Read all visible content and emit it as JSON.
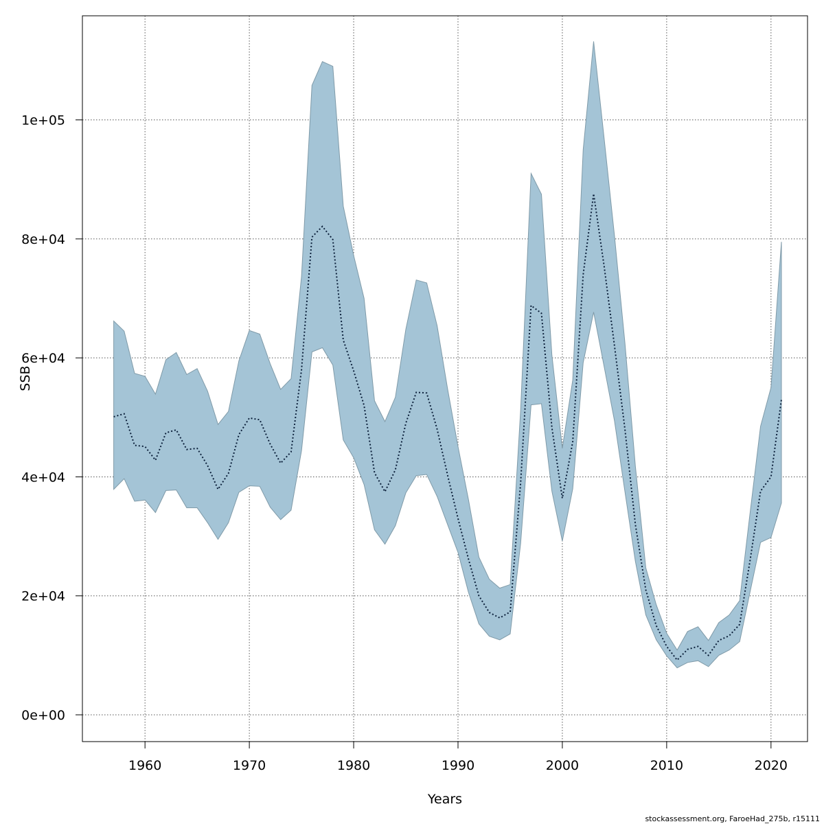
{
  "chart_data": {
    "type": "area",
    "xlabel": "Years",
    "ylabel": "SSB",
    "xlim": [
      1954,
      2023.5
    ],
    "ylim": [
      -4500,
      117500
    ],
    "x_ticks": [
      1960,
      1970,
      1980,
      1990,
      2000,
      2010,
      2020
    ],
    "x_tick_labels": [
      "1960",
      "1970",
      "1980",
      "1990",
      "2000",
      "2010",
      "2020"
    ],
    "y_ticks": [
      0,
      20000,
      40000,
      60000,
      80000,
      100000
    ],
    "y_tick_labels": [
      "0e+00",
      "2e+04",
      "4e+04",
      "6e+04",
      "8e+04",
      "1e+05"
    ],
    "grid": true,
    "band_color": "#a4c4d6",
    "line_color": "#0b1f3a",
    "x": [
      1957,
      1958,
      1959,
      1960,
      1961,
      1962,
      1963,
      1964,
      1965,
      1966,
      1967,
      1968,
      1969,
      1970,
      1971,
      1972,
      1973,
      1974,
      1975,
      1976,
      1977,
      1978,
      1979,
      1980,
      1981,
      1982,
      1983,
      1984,
      1985,
      1986,
      1987,
      1988,
      1989,
      1990,
      1991,
      1992,
      1993,
      1994,
      1995,
      1996,
      1997,
      1998,
      1999,
      2000,
      2001,
      2002,
      2003,
      2004,
      2005,
      2006,
      2007,
      2008,
      2009,
      2010,
      2011,
      2012,
      2013,
      2014,
      2015,
      2016,
      2017,
      2018,
      2019,
      2020,
      2021
    ],
    "series": [
      {
        "role": "estimate",
        "values": [
          50100,
          50600,
          45300,
          45100,
          42800,
          47400,
          47900,
          44600,
          44800,
          41900,
          37900,
          40600,
          47100,
          49900,
          49600,
          45500,
          42300,
          44200,
          58000,
          80300,
          82100,
          79900,
          63000,
          57800,
          52000,
          40700,
          37500,
          41200,
          49000,
          54200,
          54100,
          48000,
          40300,
          33000,
          26200,
          20000,
          17200,
          16300,
          17300,
          39000,
          68800,
          67500,
          48300,
          36400,
          45900,
          74000,
          87600,
          75500,
          62000,
          48000,
          32000,
          21000,
          15000,
          11500,
          9200,
          11000,
          11500,
          10000,
          12500,
          13300,
          15200,
          26000,
          37600,
          40000,
          53000
        ]
      },
      {
        "role": "upper",
        "values": [
          66200,
          64500,
          57400,
          56900,
          53900,
          59700,
          60900,
          57200,
          58200,
          54400,
          48800,
          51000,
          59500,
          64600,
          64000,
          59000,
          54700,
          56500,
          73700,
          105800,
          109800,
          109000,
          85500,
          77200,
          70000,
          52800,
          49300,
          53400,
          64800,
          73100,
          72600,
          65400,
          54800,
          45100,
          36200,
          26500,
          22800,
          21300,
          21900,
          51200,
          91000,
          87500,
          60500,
          44800,
          56300,
          95000,
          113200,
          97000,
          80500,
          62500,
          41800,
          24700,
          18500,
          13700,
          10900,
          14000,
          14800,
          12500,
          15500,
          16800,
          19200,
          34000,
          48500,
          55000,
          79500
        ]
      },
      {
        "role": "lower",
        "values": [
          37900,
          39700,
          35900,
          36100,
          34000,
          37700,
          37800,
          34800,
          34800,
          32300,
          29500,
          32300,
          37400,
          38500,
          38400,
          34900,
          32800,
          34400,
          44400,
          61000,
          61700,
          58800,
          46200,
          43200,
          38700,
          31100,
          28700,
          31800,
          37300,
          40200,
          40400,
          36700,
          32000,
          27300,
          20600,
          15300,
          13200,
          12600,
          13600,
          28800,
          52100,
          52300,
          37600,
          29200,
          38000,
          59200,
          67700,
          58600,
          49400,
          37500,
          25800,
          16800,
          12600,
          9900,
          7900,
          8800,
          9100,
          8100,
          10000,
          10900,
          12300,
          20700,
          29000,
          29800,
          35600
        ]
      }
    ]
  },
  "footer_note": "stockassessment.org, FaroeHad_275b, r15111"
}
